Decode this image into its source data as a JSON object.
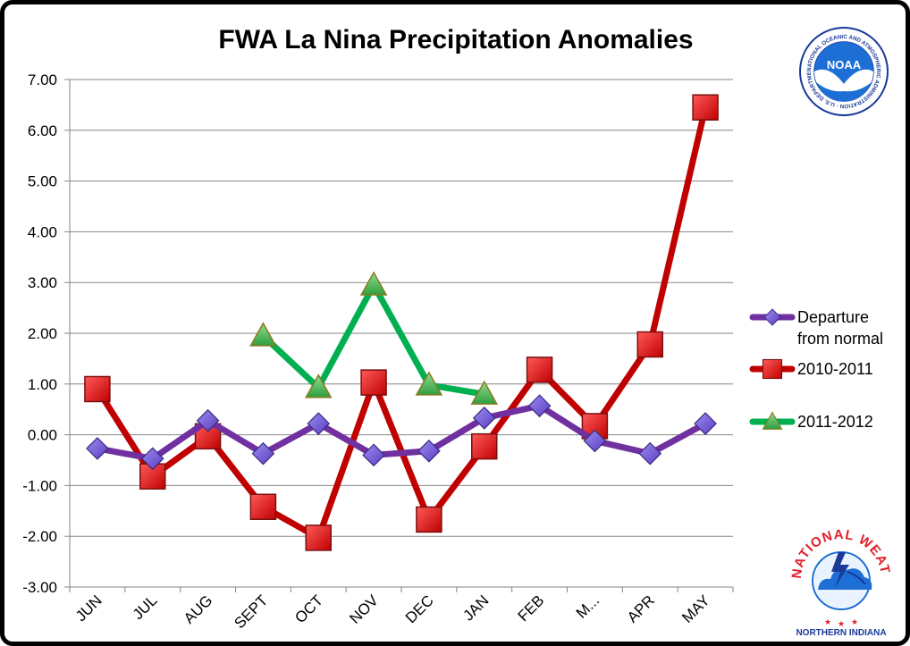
{
  "chart_data": {
    "type": "line",
    "title": "FWA La Nina Precipitation Anomalies",
    "categories": [
      "JUN",
      "JUL",
      "AUG",
      "SEPT",
      "OCT",
      "NOV",
      "DEC",
      "JAN",
      "FEB",
      "M...",
      "APR",
      "MAY"
    ],
    "ylim": [
      -3,
      7
    ],
    "yticks": [
      "-3.00",
      "-2.00",
      "-1.00",
      "0.00",
      "1.00",
      "2.00",
      "3.00",
      "4.00",
      "5.00",
      "6.00",
      "7.00"
    ],
    "grid": true,
    "legend_position": "right",
    "series": [
      {
        "name": "Departure from normal",
        "legend_lines": [
          "Departure",
          "from normal"
        ],
        "color": "#7030a0",
        "marker": "diamond",
        "marker_color": "#6a5acd",
        "values": [
          -0.27,
          -0.47,
          0.28,
          -0.37,
          0.22,
          -0.4,
          -0.32,
          0.33,
          0.57,
          -0.12,
          -0.37,
          0.22
        ]
      },
      {
        "name": "2010-2011",
        "legend_lines": [
          "2010-2011"
        ],
        "color": "#c00000",
        "marker": "square",
        "marker_color": "#e02020",
        "values": [
          0.9,
          -0.82,
          -0.03,
          -1.42,
          -2.03,
          1.03,
          -1.67,
          -0.23,
          1.28,
          0.17,
          1.78,
          6.45
        ]
      },
      {
        "name": "2011-2012",
        "legend_lines": [
          "2011-2012"
        ],
        "color": "#00b050",
        "marker": "triangle",
        "marker_color": "#5cb85c",
        "values": [
          null,
          null,
          null,
          1.95,
          0.93,
          2.95,
          0.98,
          0.8,
          null,
          null,
          null,
          null
        ]
      }
    ]
  },
  "logos": {
    "noaa": {
      "center": "NOAA",
      "ring_text": "NATIONAL OCEANIC AND ATMOSPHERIC ADMINISTRATION · U.S. DEPARTMENT OF COMMERCE"
    },
    "nws": {
      "ring_text": "NATIONAL WEATHER SERVICE",
      "caption": "NORTHERN INDIANA"
    }
  }
}
